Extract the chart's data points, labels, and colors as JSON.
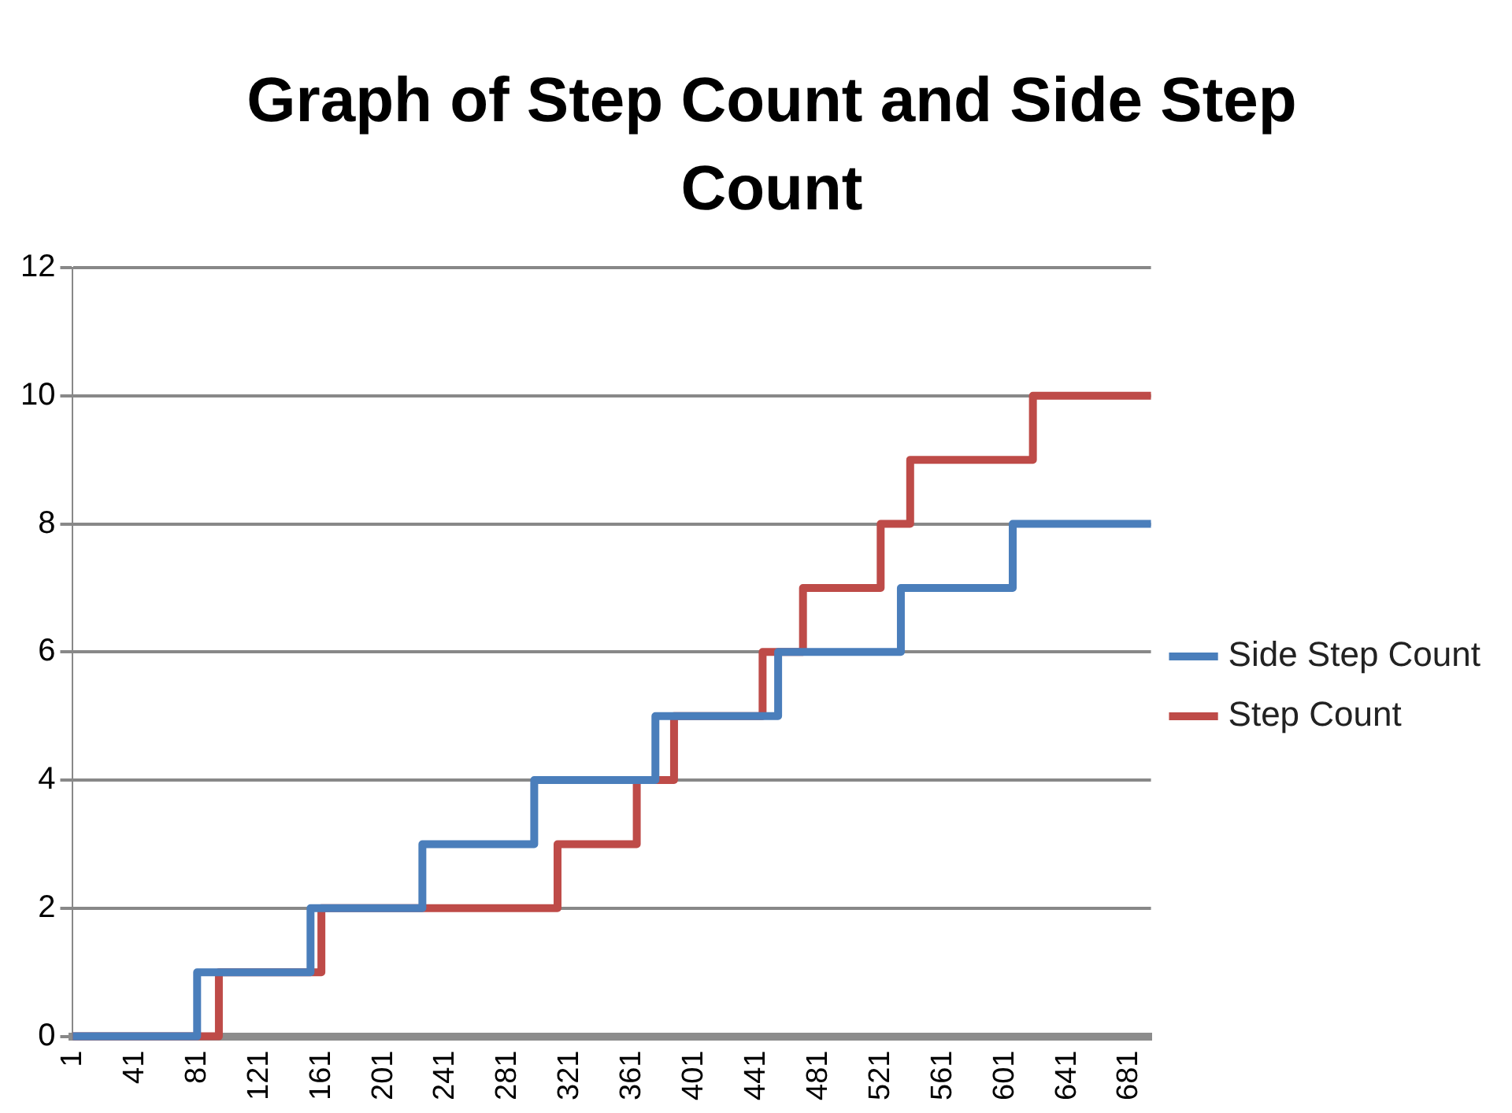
{
  "chart_data": {
    "type": "step",
    "title": "Graph of Step Count and Side Step Count",
    "xlim": [
      1,
      695
    ],
    "xticks": [
      1,
      41,
      81,
      121,
      161,
      201,
      241,
      281,
      321,
      361,
      401,
      441,
      481,
      521,
      561,
      601,
      641,
      681
    ],
    "ylim": [
      0,
      12
    ],
    "yticks": [
      0,
      2,
      4,
      6,
      8,
      10,
      12
    ],
    "grid": "y",
    "legend": "right",
    "marker": "none",
    "line_style": "solid",
    "series": [
      {
        "name": "Side Step Count",
        "color": "#4a7ebb",
        "x": [
          1,
          81,
          154,
          226,
          298,
          376,
          455,
          534,
          606,
          695
        ],
        "values": [
          0,
          0,
          1,
          2,
          3,
          4,
          5,
          6,
          7,
          8
        ]
      },
      {
        "name": "Step Count",
        "color": "#be4b48",
        "x": [
          1,
          95,
          161,
          313,
          364,
          388,
          445,
          471,
          521,
          540,
          619,
          695
        ],
        "values": [
          0,
          0,
          1,
          2,
          3,
          4,
          5,
          6,
          7,
          8,
          9,
          10
        ]
      }
    ]
  }
}
